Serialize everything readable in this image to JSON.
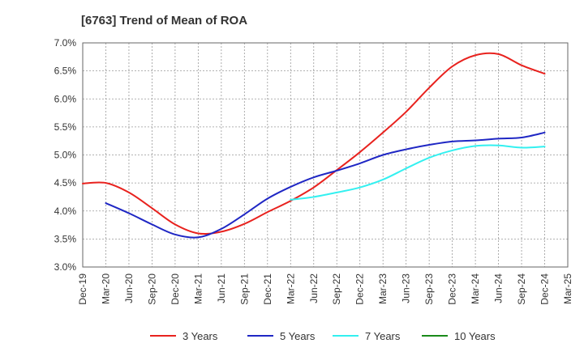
{
  "chart_data": {
    "type": "line",
    "title": "[6763]  Trend of Mean of ROA",
    "xlabel": "",
    "ylabel": "",
    "ylim": [
      3.0,
      7.0
    ],
    "yticks": [
      "3.0%",
      "3.5%",
      "4.0%",
      "4.5%",
      "5.0%",
      "5.5%",
      "6.0%",
      "6.5%",
      "7.0%"
    ],
    "ytick_values": [
      3.0,
      3.5,
      4.0,
      4.5,
      5.0,
      5.5,
      6.0,
      6.5,
      7.0
    ],
    "categories": [
      "Dec-19",
      "Mar-20",
      "Jun-20",
      "Sep-20",
      "Dec-20",
      "Mar-21",
      "Jun-21",
      "Sep-21",
      "Dec-21",
      "Mar-22",
      "Jun-22",
      "Sep-22",
      "Dec-22",
      "Mar-23",
      "Jun-23",
      "Sep-23",
      "Dec-23",
      "Mar-24",
      "Jun-24",
      "Sep-24",
      "Dec-24",
      "Mar-25"
    ],
    "grid": true,
    "legend_position": "bottom",
    "series": [
      {
        "name": "3 Years",
        "color": "#e8221e",
        "values": [
          4.49,
          4.5,
          4.33,
          4.05,
          3.76,
          3.6,
          3.63,
          3.77,
          3.98,
          4.18,
          4.42,
          4.73,
          5.05,
          5.4,
          5.77,
          6.2,
          6.58,
          6.78,
          6.8,
          6.6,
          6.45,
          null
        ]
      },
      {
        "name": "5 Years",
        "color": "#1f27c4",
        "values": [
          null,
          4.14,
          3.96,
          3.76,
          3.58,
          3.53,
          3.68,
          3.94,
          4.22,
          4.43,
          4.6,
          4.72,
          4.85,
          5.0,
          5.1,
          5.18,
          5.24,
          5.26,
          5.29,
          5.31,
          5.4,
          null
        ]
      },
      {
        "name": "7 Years",
        "color": "#33f0f0",
        "values": [
          null,
          null,
          null,
          null,
          null,
          null,
          null,
          null,
          null,
          4.2,
          4.25,
          4.33,
          4.42,
          4.56,
          4.76,
          4.95,
          5.08,
          5.16,
          5.17,
          5.13,
          5.15,
          null
        ]
      },
      {
        "name": "10 Years",
        "color": "#1a8a1a",
        "values": [
          null,
          null,
          null,
          null,
          null,
          null,
          null,
          null,
          null,
          null,
          null,
          null,
          null,
          null,
          null,
          null,
          null,
          null,
          null,
          null,
          null,
          null
        ]
      }
    ]
  }
}
